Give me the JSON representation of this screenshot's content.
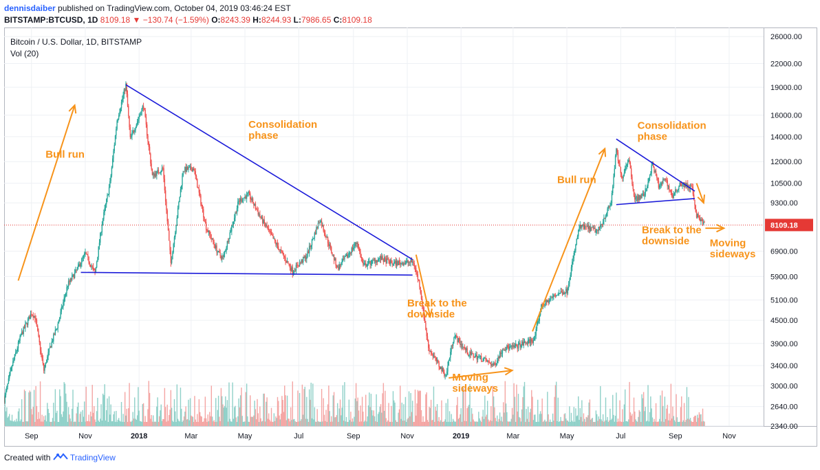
{
  "header": {
    "author": "dennisdaiber",
    "published_text": "published on TradingView.com, October 04, 2019 03:46:24 EST",
    "symbol": "BITSTAMP:BTCUSD, 1D",
    "last": "8109.18",
    "change": "−130.74 (−1.59%)",
    "o_label": "O:",
    "o": "8243.39",
    "h_label": "H:",
    "h": "8244.93",
    "l_label": "L:",
    "l": "7986.65",
    "c_label": "C:",
    "c": "8109.18"
  },
  "legend": {
    "title": "Bitcoin / U.S. Dollar, 1D, BITSTAMP",
    "volume": "Vol (20)"
  },
  "footer": {
    "created_with": "Created with",
    "brand": "TradingView"
  },
  "colors": {
    "up": "#26a69a",
    "down": "#ef5350",
    "vol_up": "#8fd0c8",
    "vol_down": "#f4a5a3",
    "trendline": "#1a1ad9",
    "annotation": "#f7931a",
    "price_line": "#e53935",
    "grid": "#eef0f4"
  },
  "chart_data": {
    "type": "candlestick",
    "title": "Bitcoin / U.S. Dollar, 1D, BITSTAMP",
    "y_scale": "log",
    "ylim": [
      2340,
      27500
    ],
    "x_range": [
      "2017-08-01",
      "2019-12-10"
    ],
    "y_ticks": [
      "26000.00",
      "22000.00",
      "19000.00",
      "16000.00",
      "14000.00",
      "12000.00",
      "10500.00",
      "9300.00",
      "8109.18",
      "6900.00",
      "5900.00",
      "5100.00",
      "4500.00",
      "3900.00",
      "3400.00",
      "3000.00",
      "2640.00",
      "2340.00"
    ],
    "x_ticks": [
      {
        "label": "Sep",
        "date": "2017-09-01"
      },
      {
        "label": "Nov",
        "date": "2017-11-01"
      },
      {
        "label": "2018",
        "date": "2018-01-01"
      },
      {
        "label": "Mar",
        "date": "2018-03-01"
      },
      {
        "label": "May",
        "date": "2018-05-01"
      },
      {
        "label": "Jul",
        "date": "2018-07-01"
      },
      {
        "label": "Sep",
        "date": "2018-09-01"
      },
      {
        "label": "Nov",
        "date": "2018-11-01"
      },
      {
        "label": "2019",
        "date": "2019-01-01"
      },
      {
        "label": "Mar",
        "date": "2019-03-01"
      },
      {
        "label": "May",
        "date": "2019-05-01"
      },
      {
        "label": "Jul",
        "date": "2019-07-01"
      },
      {
        "label": "Sep",
        "date": "2019-09-01"
      },
      {
        "label": "Nov",
        "date": "2019-11-01"
      }
    ],
    "price_path": [
      [
        "2017-08-01",
        2750
      ],
      [
        "2017-08-10",
        3400
      ],
      [
        "2017-08-20",
        4100
      ],
      [
        "2017-09-01",
        4700
      ],
      [
        "2017-09-05",
        4600
      ],
      [
        "2017-09-15",
        3300
      ],
      [
        "2017-09-22",
        3800
      ],
      [
        "2017-10-01",
        4400
      ],
      [
        "2017-10-12",
        5600
      ],
      [
        "2017-10-20",
        6000
      ],
      [
        "2017-11-01",
        6800
      ],
      [
        "2017-11-12",
        6000
      ],
      [
        "2017-11-20",
        8200
      ],
      [
        "2017-11-29",
        10500
      ],
      [
        "2017-12-07",
        15500
      ],
      [
        "2017-12-17",
        19300
      ],
      [
        "2017-12-22",
        13800
      ],
      [
        "2017-12-28",
        15000
      ],
      [
        "2018-01-06",
        17000
      ],
      [
        "2018-01-16",
        11000
      ],
      [
        "2018-01-28",
        11500
      ],
      [
        "2018-02-06",
        6400
      ],
      [
        "2018-02-20",
        11400
      ],
      [
        "2018-03-04",
        11500
      ],
      [
        "2018-03-18",
        8000
      ],
      [
        "2018-04-01",
        6800
      ],
      [
        "2018-04-06",
        6600
      ],
      [
        "2018-04-24",
        9400
      ],
      [
        "2018-05-05",
        9800
      ],
      [
        "2018-05-20",
        8400
      ],
      [
        "2018-06-01",
        7500
      ],
      [
        "2018-06-24",
        6100
      ],
      [
        "2018-07-10",
        6700
      ],
      [
        "2018-07-25",
        8400
      ],
      [
        "2018-08-14",
        6200
      ],
      [
        "2018-08-25",
        6700
      ],
      [
        "2018-09-05",
        7300
      ],
      [
        "2018-09-12",
        6300
      ],
      [
        "2018-10-01",
        6600
      ],
      [
        "2018-10-15",
        6400
      ],
      [
        "2018-11-08",
        6450
      ],
      [
        "2018-11-15",
        5600
      ],
      [
        "2018-11-20",
        4600
      ],
      [
        "2018-11-25",
        3800
      ],
      [
        "2018-12-07",
        3400
      ],
      [
        "2018-12-15",
        3200
      ],
      [
        "2018-12-20",
        3700
      ],
      [
        "2018-12-24",
        4100
      ],
      [
        "2019-01-10",
        3650
      ],
      [
        "2019-01-25",
        3550
      ],
      [
        "2019-02-07",
        3400
      ],
      [
        "2019-02-18",
        3800
      ],
      [
        "2019-03-01",
        3800
      ],
      [
        "2019-03-25",
        4000
      ],
      [
        "2019-04-02",
        4900
      ],
      [
        "2019-04-20",
        5300
      ],
      [
        "2019-05-01",
        5400
      ],
      [
        "2019-05-15",
        8000
      ],
      [
        "2019-05-22",
        8000
      ],
      [
        "2019-06-05",
        7800
      ],
      [
        "2019-06-20",
        9300
      ],
      [
        "2019-06-26",
        12900
      ],
      [
        "2019-07-02",
        10800
      ],
      [
        "2019-07-10",
        12300
      ],
      [
        "2019-07-17",
        9500
      ],
      [
        "2019-07-28",
        9800
      ],
      [
        "2019-08-06",
        11800
      ],
      [
        "2019-08-14",
        10200
      ],
      [
        "2019-08-20",
        10900
      ],
      [
        "2019-08-29",
        9600
      ],
      [
        "2019-09-06",
        10500
      ],
      [
        "2019-09-20",
        10200
      ],
      [
        "2019-09-24",
        8700
      ],
      [
        "2019-09-30",
        8300
      ],
      [
        "2019-10-04",
        8109.18
      ]
    ],
    "trendlines": [
      {
        "from": [
          "2017-12-17",
          19300
        ],
        "to": [
          "2018-11-07",
          6550
        ]
      },
      {
        "from": [
          "2017-10-27",
          6050
        ],
        "to": [
          "2018-11-07",
          5950
        ]
      },
      {
        "from": [
          "2019-06-26",
          13800
        ],
        "to": [
          "2019-09-23",
          10000
        ]
      },
      {
        "from": [
          "2019-06-26",
          9200
        ],
        "to": [
          "2019-09-23",
          9550
        ]
      }
    ],
    "annotations": [
      {
        "text": "Bull run",
        "date": "2017-09-17",
        "price": 12300
      },
      {
        "text": "Consolidation\nphase",
        "date": "2018-05-05",
        "price": 14800
      },
      {
        "text": "Break to the\ndownside",
        "date": "2018-11-01",
        "price": 4900
      },
      {
        "text": "Moving\nsideways",
        "date": "2018-12-22",
        "price": 3100
      },
      {
        "text": "Bull run",
        "date": "2019-04-20",
        "price": 10500
      },
      {
        "text": "Consolidation\nphase",
        "date": "2019-07-20",
        "price": 14700
      },
      {
        "text": "Break to the\ndownside",
        "date": "2019-07-25",
        "price": 7700
      },
      {
        "text": "Moving\nsideways",
        "date": "2019-10-10",
        "price": 7100
      }
    ],
    "last_price": 8109.18
  }
}
